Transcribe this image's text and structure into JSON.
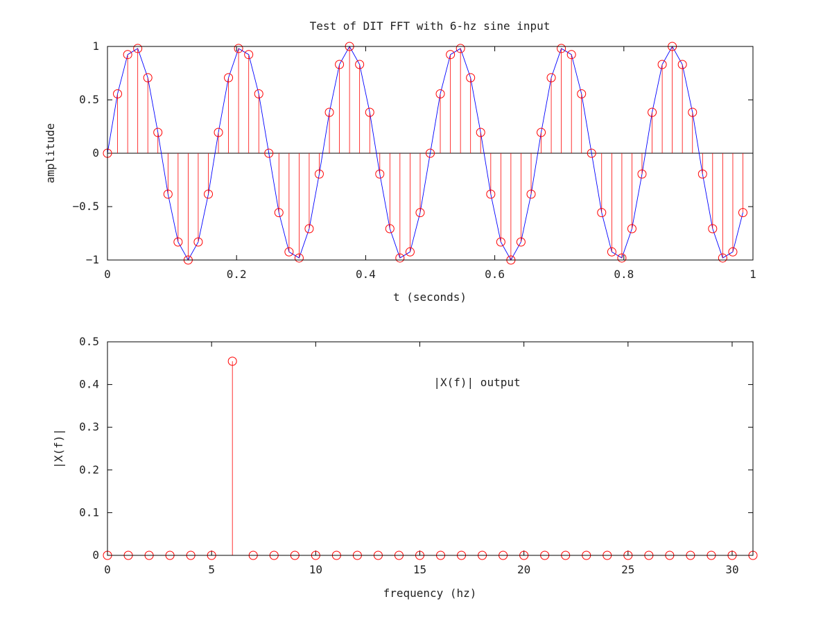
{
  "chart_data": [
    {
      "type": "stem",
      "title": "Test of DIT FFT with 6-hz sine input",
      "xlabel": "t (seconds)",
      "ylabel": "amplitude",
      "xlim": [
        0,
        1
      ],
      "ylim": [
        -1,
        1
      ],
      "xticks": [
        "0",
        "0.2",
        "0.4",
        "0.6",
        "0.8",
        "1"
      ],
      "yticks": [
        "−1",
        "−0.5",
        "0",
        "0.5",
        "1"
      ],
      "series": [
        {
          "style": "stem with circle markers plus connecting line",
          "x": [
            0,
            0.0156,
            0.0313,
            0.0469,
            0.0625,
            0.0781,
            0.0938,
            0.1094,
            0.125,
            0.1406,
            0.1563,
            0.1719,
            0.1875,
            0.2031,
            0.2188,
            0.2344,
            0.25,
            0.2656,
            0.2813,
            0.2969,
            0.3125,
            0.3281,
            0.3438,
            0.3594,
            0.375,
            0.3906,
            0.4063,
            0.4219,
            0.4375,
            0.4531,
            0.4688,
            0.4844,
            0.5,
            0.5156,
            0.5313,
            0.5469,
            0.5625,
            0.5781,
            0.5938,
            0.6094,
            0.625,
            0.6406,
            0.6563,
            0.6719,
            0.6875,
            0.7031,
            0.7188,
            0.7344,
            0.75,
            0.7656,
            0.7813,
            0.7969,
            0.8125,
            0.8281,
            0.8438,
            0.8594,
            0.875,
            0.8906,
            0.9063,
            0.9219,
            0.9375,
            0.9531,
            0.9688,
            0.9844
          ],
          "y": [
            0,
            0.556,
            0.924,
            0.981,
            0.707,
            0.195,
            -0.383,
            -0.831,
            -1,
            -0.831,
            -0.383,
            0.195,
            0.707,
            0.981,
            0.924,
            0.556,
            0,
            -0.556,
            -0.924,
            -0.981,
            -0.707,
            -0.195,
            0.383,
            0.831,
            1,
            0.831,
            0.383,
            -0.195,
            -0.707,
            -0.981,
            -0.924,
            -0.556,
            0,
            0.556,
            0.924,
            0.981,
            0.707,
            0.195,
            -0.383,
            -0.831,
            -1,
            -0.831,
            -0.383,
            0.195,
            0.707,
            0.981,
            0.924,
            0.556,
            0,
            -0.556,
            -0.924,
            -0.981,
            -0.707,
            -0.195,
            0.383,
            0.831,
            1,
            0.831,
            0.383,
            -0.195,
            -0.707,
            -0.981,
            -0.924,
            -0.556
          ]
        }
      ],
      "colors": {
        "stem": "#ff0000",
        "marker": "#ff0000",
        "line": "#0000ff"
      }
    },
    {
      "type": "stem",
      "title": "",
      "xlabel": "frequency (hz)",
      "ylabel": "|X(f)|",
      "annotation": "|X(f)| output",
      "xlim": [
        0,
        31
      ],
      "ylim": [
        0,
        0.55
      ],
      "xticks": [
        "0",
        "5",
        "10",
        "15",
        "20",
        "25",
        "30"
      ],
      "yticks": [
        "0",
        "0.1",
        "0.2",
        "0.3",
        "0.4",
        "0.5"
      ],
      "series": [
        {
          "style": "stem with circle markers",
          "x": [
            0,
            1,
            2,
            3,
            4,
            5,
            6,
            7,
            8,
            9,
            10,
            11,
            12,
            13,
            14,
            15,
            16,
            17,
            18,
            19,
            20,
            21,
            22,
            23,
            24,
            25,
            26,
            27,
            28,
            29,
            30,
            31
          ],
          "y": [
            0,
            0,
            0,
            0,
            0,
            0,
            0.5,
            0,
            0,
            0,
            0,
            0,
            0,
            0,
            0,
            0,
            0,
            0,
            0,
            0,
            0,
            0,
            0,
            0,
            0,
            0,
            0,
            0,
            0,
            0,
            0,
            0
          ]
        }
      ],
      "colors": {
        "stem": "#ff0000",
        "marker": "#ff0000"
      }
    }
  ]
}
